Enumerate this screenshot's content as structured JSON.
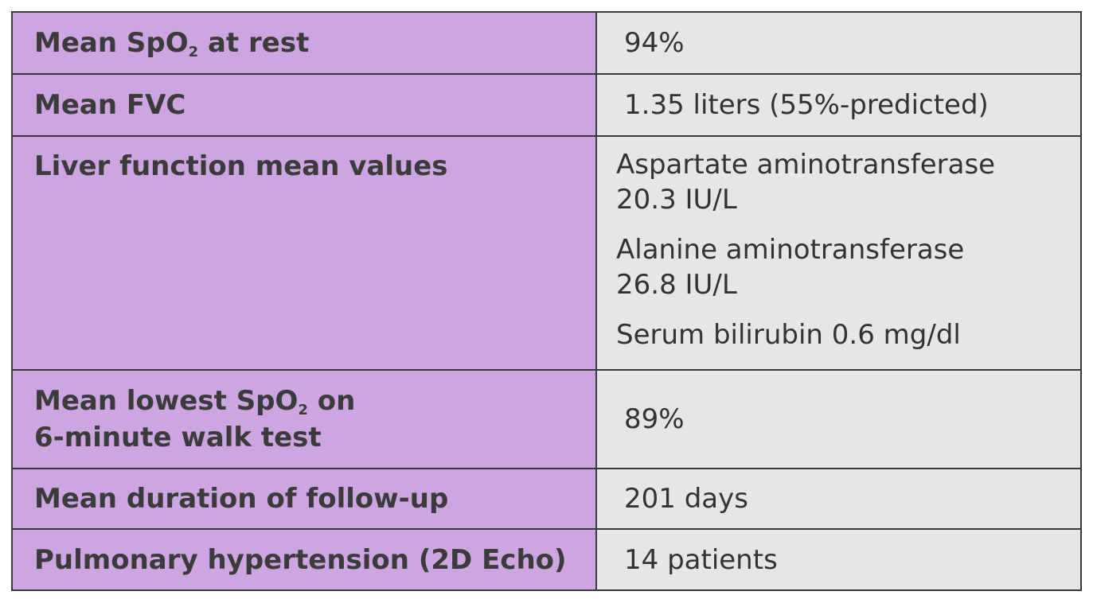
{
  "rows": [
    {
      "label_pre": "Mean SpO",
      "label_sub": "2",
      "label_post": " at rest",
      "value": "94%"
    },
    {
      "label": "Mean FVC",
      "value": "1.35 liters (55%-predicted)"
    },
    {
      "label": "Liver function mean values",
      "values": [
        {
          "line1": "Aspartate aminotransferase",
          "line2": "20.3 IU/L"
        },
        {
          "line1": "Alanine aminotransferase",
          "line2": "26.8 IU/L"
        },
        {
          "line1": "Serum bilirubin 0.6 mg/dl"
        }
      ]
    },
    {
      "label_pre": "Mean lowest SpO",
      "label_sub": "2",
      "label_post": " on",
      "label_line2": "6-minute walk test",
      "value": "89%"
    },
    {
      "label": "Mean duration of follow-up",
      "value": "201 days"
    },
    {
      "label": "Pulmonary hypertension (2D Echo)",
      "value": "14 patients"
    }
  ],
  "colors": {
    "label_bg": "#cda5e0",
    "value_bg": "#e6e6e8",
    "border": "#3a3a3a"
  }
}
